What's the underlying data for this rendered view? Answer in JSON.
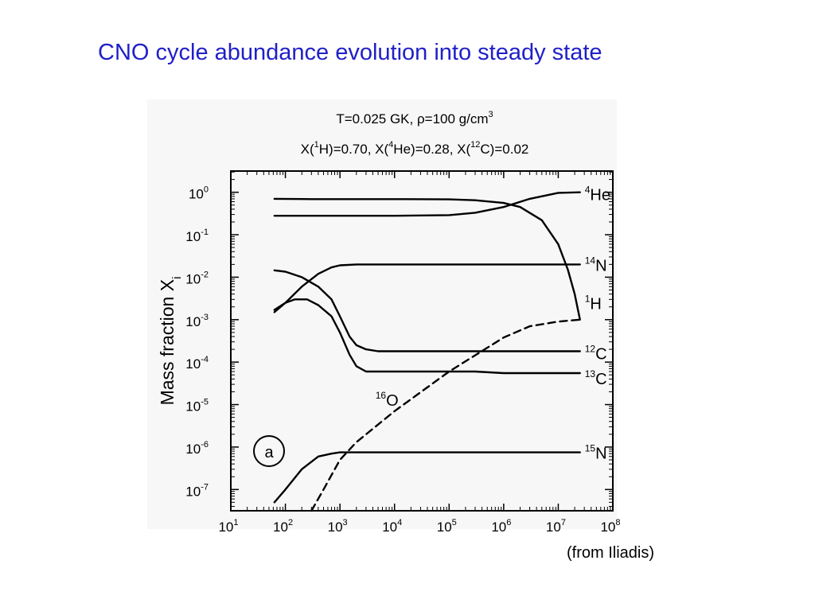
{
  "slide": {
    "title": "CNO cycle abundance evolution into steady state",
    "caption": "(from Iliadis)"
  },
  "chart_data": {
    "type": "line",
    "title_lines": [
      [
        {
          "t": "T=0.025 GK, "
        },
        {
          "t": "ρ",
          "k": "n"
        },
        {
          "t": "=100 g/cm"
        },
        {
          "t": "3",
          "k": "sup"
        }
      ],
      [
        {
          "t": "X("
        },
        {
          "t": "1",
          "k": "sup"
        },
        {
          "t": "H)=0.70, X("
        },
        {
          "t": "4",
          "k": "sup"
        },
        {
          "t": "He)=0.28, X("
        },
        {
          "t": "12",
          "k": "sup"
        },
        {
          "t": "C)=0.02"
        }
      ]
    ],
    "ylabel": "Mass fraction X",
    "ylabel_sub": "i",
    "panel_label": "a",
    "xscale": "log",
    "yscale": "log",
    "xlim": [
      10,
      100000000
    ],
    "ylim": [
      3.16e-08,
      3.16
    ],
    "x_ticks": [
      {
        "value": 10,
        "base": "10",
        "exp": "1"
      },
      {
        "value": 100,
        "base": "10",
        "exp": "2"
      },
      {
        "value": 1000,
        "base": "10",
        "exp": "3"
      },
      {
        "value": 10000,
        "base": "10",
        "exp": "4"
      },
      {
        "value": 100000,
        "base": "10",
        "exp": "5"
      },
      {
        "value": 1000000,
        "base": "10",
        "exp": "6"
      },
      {
        "value": 10000000,
        "base": "10",
        "exp": "7"
      },
      {
        "value": 100000000,
        "base": "10",
        "exp": "8"
      }
    ],
    "y_ticks": [
      {
        "value": 1,
        "base": "10",
        "exp": "0"
      },
      {
        "value": 0.1,
        "base": "10",
        "exp": "-1"
      },
      {
        "value": 0.01,
        "base": "10",
        "exp": "-2"
      },
      {
        "value": 0.001,
        "base": "10",
        "exp": "-3"
      },
      {
        "value": 0.0001,
        "base": "10",
        "exp": "-4"
      },
      {
        "value": 1e-05,
        "base": "10",
        "exp": "-5"
      },
      {
        "value": 1e-06,
        "base": "10",
        "exp": "-6"
      },
      {
        "value": 1e-07,
        "base": "10",
        "exp": "-7"
      }
    ],
    "grid": false,
    "series": [
      {
        "key": "he4",
        "label_sup": "4",
        "label_main": "He",
        "label_dx": 0,
        "label_dy": 0,
        "style": "solid",
        "x": [
          63,
          300,
          1000,
          10000,
          100000,
          300000,
          1000000,
          3000000,
          10000000,
          25000000
        ],
        "y": [
          0.28,
          0.28,
          0.28,
          0.28,
          0.29,
          0.33,
          0.45,
          0.7,
          0.97,
          1.0
        ]
      },
      {
        "key": "h1",
        "label_sup": "1",
        "label_main": "H",
        "label_dx": 0,
        "label_dy": 0,
        "style": "solid",
        "x": [
          63,
          300,
          1000,
          10000,
          100000,
          300000,
          1000000,
          2000000,
          5000000,
          10000000,
          15000000,
          20000000,
          25000000
        ],
        "y": [
          0.7,
          0.69,
          0.69,
          0.69,
          0.68,
          0.65,
          0.56,
          0.45,
          0.22,
          0.06,
          0.015,
          0.004,
          0.001
        ]
      },
      {
        "key": "n14",
        "label_sup": "14",
        "label_main": "N",
        "label_dx": 0,
        "label_dy": 0,
        "style": "solid",
        "x": [
          63,
          100,
          200,
          400,
          700,
          1000,
          2000,
          10000,
          1000000,
          25000000
        ],
        "y": [
          0.0017,
          0.0025,
          0.006,
          0.012,
          0.017,
          0.019,
          0.02,
          0.02,
          0.02,
          0.02
        ]
      },
      {
        "key": "c12",
        "label_sup": "12",
        "label_main": "C",
        "label_dx": 0,
        "label_dy": 0,
        "style": "solid",
        "x": [
          63,
          100,
          200,
          400,
          700,
          1000,
          1500,
          2000,
          3000,
          5000,
          10000,
          1000000,
          25000000
        ],
        "y": [
          0.0145,
          0.0135,
          0.01,
          0.006,
          0.003,
          0.0012,
          0.0004,
          0.00025,
          0.0002,
          0.00018,
          0.00018,
          0.00018,
          0.00018
        ]
      },
      {
        "key": "c13",
        "label_sup": "13",
        "label_main": "C",
        "label_dx": 0,
        "label_dy": 0,
        "style": "solid",
        "x": [
          63,
          100,
          150,
          250,
          400,
          700,
          1000,
          1500,
          2000,
          3000,
          10000,
          300000,
          1000000,
          25000000
        ],
        "y": [
          0.0015,
          0.0025,
          0.003,
          0.003,
          0.0022,
          0.0012,
          0.0005,
          0.00015,
          8e-05,
          6e-05,
          6e-05,
          6e-05,
          5.5e-05,
          5.5e-05
        ]
      },
      {
        "key": "o16",
        "label_sup": "16",
        "label_main": "O",
        "label_dx": -263,
        "label_dy": 100,
        "style": "dashed",
        "x": [
          300,
          500,
          1000,
          2000,
          10000,
          100000,
          1000000,
          3000000,
          10000000,
          25000000
        ],
        "y": [
          3e-08,
          1e-07,
          5e-07,
          1.3e-06,
          7e-06,
          6e-05,
          0.00038,
          0.0007,
          0.0009,
          0.001
        ]
      },
      {
        "key": "n15",
        "label_sup": "15",
        "label_main": "N",
        "label_dx": 0,
        "label_dy": 0,
        "style": "solid",
        "x": [
          63,
          100,
          200,
          400,
          700,
          1000,
          2000,
          1000000,
          25000000
        ],
        "y": [
          5e-08,
          1e-07,
          3e-07,
          6e-07,
          7e-07,
          7.5e-07,
          7.5e-07,
          7.5e-07,
          7.5e-07
        ]
      }
    ]
  }
}
